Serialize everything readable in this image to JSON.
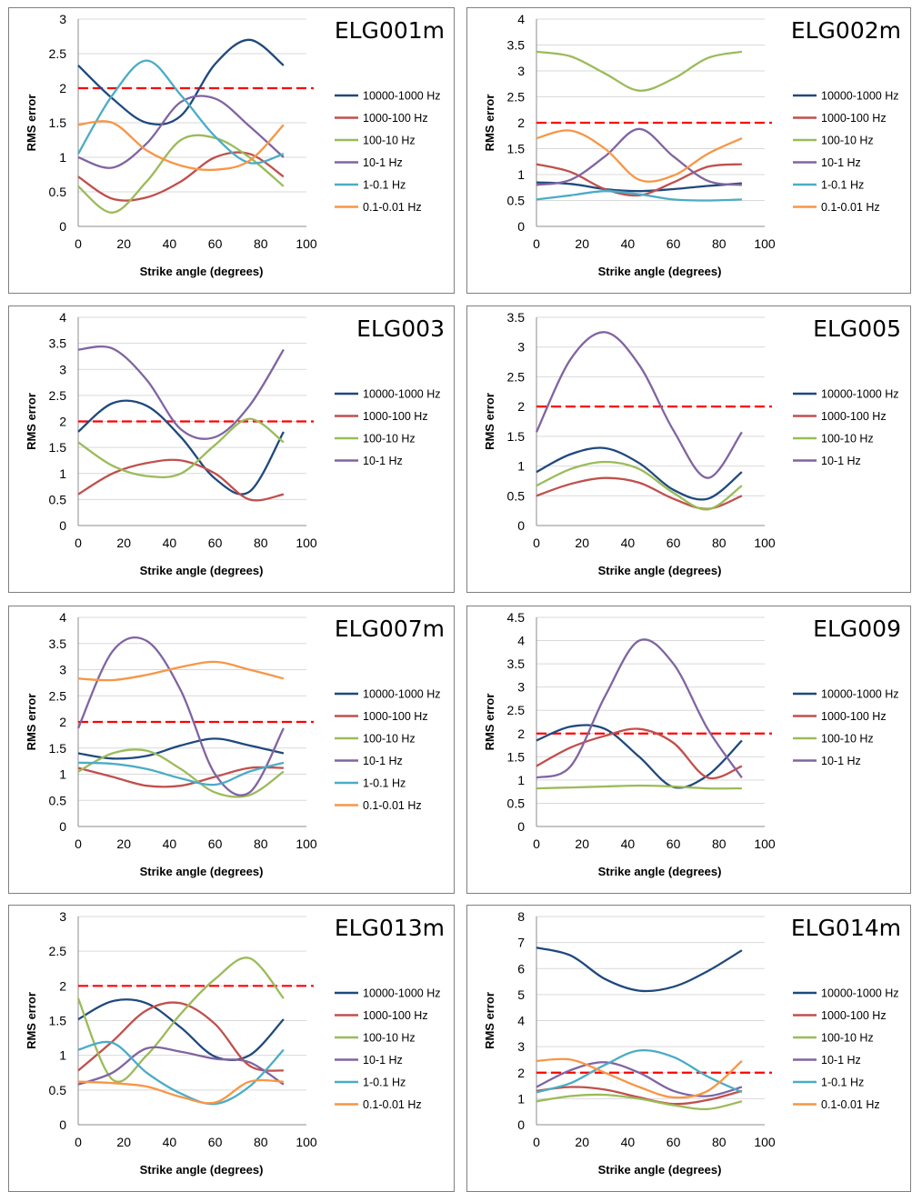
{
  "colors": {
    "10000-1000 Hz": "#1f497d",
    "1000-100 Hz": "#c0504d",
    "100-10 Hz": "#9bbb59",
    "10-1 Hz": "#8064a2",
    "1-0.1 Hz": "#4bacc6",
    "0.1-0.01 Hz": "#f79646",
    "threshold": "#ff0000",
    "grid": "#d9d9d9"
  },
  "chart_data": [
    {
      "type": "line",
      "title": "ELG001m",
      "xlabel": "Strike angle (degrees)",
      "ylabel": "RMS error",
      "xlim": [
        0,
        100
      ],
      "ylim": [
        0,
        3
      ],
      "x_ticks": [
        0,
        20,
        40,
        60,
        80,
        100
      ],
      "y_ticks": [
        "0",
        "0.5",
        "1",
        "1.5",
        "2",
        "2.5",
        "3"
      ],
      "threshold": 2,
      "grid": "horizontal",
      "legend": "right",
      "x": [
        0,
        15,
        30,
        45,
        60,
        75,
        90
      ],
      "series": [
        {
          "name": "10000-1000 Hz",
          "values": [
            2.33,
            1.85,
            1.5,
            1.6,
            2.35,
            2.7,
            2.33
          ]
        },
        {
          "name": "1000-100 Hz",
          "values": [
            0.72,
            0.4,
            0.42,
            0.65,
            1.0,
            1.05,
            0.72
          ]
        },
        {
          "name": "100-10 Hz",
          "values": [
            0.58,
            0.2,
            0.65,
            1.25,
            1.28,
            1.0,
            0.58
          ]
        },
        {
          "name": "10-1 Hz",
          "values": [
            1.0,
            0.85,
            1.2,
            1.8,
            1.85,
            1.45,
            1.0
          ]
        },
        {
          "name": "1-0.1 Hz",
          "values": [
            1.05,
            1.9,
            2.4,
            1.9,
            1.3,
            0.92,
            1.05
          ]
        },
        {
          "name": "0.1-0.01 Hz",
          "values": [
            1.47,
            1.5,
            1.1,
            0.88,
            0.82,
            0.95,
            1.47
          ]
        }
      ]
    },
    {
      "type": "line",
      "title": "ELG002m",
      "xlabel": "Strike angle (degrees)",
      "ylabel": "RMS error",
      "xlim": [
        0,
        100
      ],
      "ylim": [
        0,
        4
      ],
      "x_ticks": [
        0,
        20,
        40,
        60,
        80,
        100
      ],
      "y_ticks": [
        "0",
        "0.5",
        "1",
        "1.5",
        "2",
        "2.5",
        "3",
        "3.5",
        "4"
      ],
      "threshold": 2,
      "grid": "horizontal",
      "legend": "right",
      "x": [
        0,
        15,
        30,
        45,
        60,
        75,
        90
      ],
      "series": [
        {
          "name": "10000-1000 Hz",
          "values": [
            0.85,
            0.82,
            0.72,
            0.68,
            0.72,
            0.78,
            0.83
          ]
        },
        {
          "name": "1000-100 Hz",
          "values": [
            1.2,
            1.05,
            0.72,
            0.6,
            0.85,
            1.15,
            1.2
          ]
        },
        {
          "name": "100-10 Hz",
          "values": [
            3.37,
            3.28,
            2.95,
            2.62,
            2.85,
            3.25,
            3.37
          ]
        },
        {
          "name": "10-1 Hz",
          "values": [
            0.8,
            0.9,
            1.35,
            1.88,
            1.35,
            0.88,
            0.8
          ]
        },
        {
          "name": "1-0.1 Hz",
          "values": [
            0.52,
            0.6,
            0.68,
            0.62,
            0.52,
            0.5,
            0.52
          ]
        },
        {
          "name": "0.1-0.01 Hz",
          "values": [
            1.7,
            1.85,
            1.5,
            0.9,
            0.98,
            1.4,
            1.7
          ]
        }
      ]
    },
    {
      "type": "line",
      "title": "ELG003",
      "xlabel": "Strike angle (degrees)",
      "ylabel": "RMS error",
      "xlim": [
        0,
        100
      ],
      "ylim": [
        0,
        4
      ],
      "x_ticks": [
        0,
        20,
        40,
        60,
        80,
        100
      ],
      "y_ticks": [
        "0",
        "0.5",
        "1",
        "1.5",
        "2",
        "2.5",
        "3",
        "3.5",
        "4"
      ],
      "threshold": 2,
      "grid": "horizontal",
      "legend": "right",
      "x": [
        0,
        15,
        30,
        45,
        60,
        75,
        90
      ],
      "series": [
        {
          "name": "10000-1000 Hz",
          "values": [
            1.8,
            2.35,
            2.3,
            1.7,
            0.9,
            0.65,
            1.8
          ]
        },
        {
          "name": "1000-100 Hz",
          "values": [
            0.6,
            1.0,
            1.2,
            1.25,
            1.0,
            0.5,
            0.6
          ]
        },
        {
          "name": "100-10 Hz",
          "values": [
            1.6,
            1.15,
            0.95,
            1.0,
            1.55,
            2.05,
            1.6
          ]
        },
        {
          "name": "10-1 Hz",
          "values": [
            3.38,
            3.4,
            2.8,
            1.85,
            1.7,
            2.3,
            3.38
          ]
        }
      ]
    },
    {
      "type": "line",
      "title": "ELG005",
      "xlabel": "Strike angle (degrees)",
      "ylabel": "RMS error",
      "xlim": [
        0,
        100
      ],
      "ylim": [
        0,
        3.5
      ],
      "x_ticks": [
        0,
        20,
        40,
        60,
        80,
        100
      ],
      "y_ticks": [
        "0",
        "0.5",
        "1",
        "1.5",
        "2",
        "2.5",
        "3",
        "3.5"
      ],
      "threshold": 2,
      "grid": "horizontal",
      "legend": "right",
      "x": [
        0,
        15,
        30,
        45,
        60,
        75,
        90
      ],
      "series": [
        {
          "name": "10000-1000 Hz",
          "values": [
            0.9,
            1.2,
            1.3,
            1.05,
            0.6,
            0.45,
            0.9
          ]
        },
        {
          "name": "1000-100 Hz",
          "values": [
            0.5,
            0.7,
            0.8,
            0.72,
            0.45,
            0.28,
            0.5
          ]
        },
        {
          "name": "100-10 Hz",
          "values": [
            0.67,
            0.95,
            1.07,
            0.95,
            0.55,
            0.27,
            0.67
          ]
        },
        {
          "name": "10-1 Hz",
          "values": [
            1.57,
            2.8,
            3.25,
            2.7,
            1.6,
            0.8,
            1.57
          ]
        }
      ]
    },
    {
      "type": "line",
      "title": "ELG007m",
      "xlabel": "Strike angle (degrees)",
      "ylabel": "RMS error",
      "xlim": [
        0,
        100
      ],
      "ylim": [
        0,
        4
      ],
      "x_ticks": [
        0,
        20,
        40,
        60,
        80,
        100
      ],
      "y_ticks": [
        "0",
        "0.5",
        "1",
        "1.5",
        "2",
        "2.5",
        "3",
        "3.5",
        "4"
      ],
      "threshold": 2,
      "grid": "horizontal",
      "legend": "right",
      "x": [
        0,
        15,
        30,
        45,
        60,
        75,
        90
      ],
      "series": [
        {
          "name": "10000-1000 Hz",
          "values": [
            1.4,
            1.3,
            1.35,
            1.55,
            1.68,
            1.55,
            1.4
          ]
        },
        {
          "name": "1000-100 Hz",
          "values": [
            1.12,
            0.95,
            0.78,
            0.78,
            0.95,
            1.12,
            1.12
          ]
        },
        {
          "name": "100-10 Hz",
          "values": [
            1.05,
            1.4,
            1.45,
            1.1,
            0.65,
            0.6,
            1.05
          ]
        },
        {
          "name": "10-1 Hz",
          "values": [
            1.88,
            3.35,
            3.55,
            2.6,
            1.0,
            0.65,
            1.88
          ]
        },
        {
          "name": "1-0.1 Hz",
          "values": [
            1.22,
            1.2,
            1.1,
            0.92,
            0.8,
            1.05,
            1.22
          ]
        },
        {
          "name": "0.1-0.01 Hz",
          "values": [
            2.83,
            2.8,
            2.9,
            3.05,
            3.15,
            3.0,
            2.83
          ]
        }
      ]
    },
    {
      "type": "line",
      "title": "ELG009",
      "xlabel": "Strike angle (degrees)",
      "ylabel": "RMS error",
      "xlim": [
        0,
        100
      ],
      "ylim": [
        0,
        4.5
      ],
      "x_ticks": [
        0,
        20,
        40,
        60,
        80,
        100
      ],
      "y_ticks": [
        "0",
        "0.5",
        "1",
        "1.5",
        "2",
        "2.5",
        "3",
        "3.5",
        "4",
        "4.5"
      ],
      "threshold": 2,
      "grid": "horizontal",
      "legend": "right",
      "x": [
        0,
        15,
        30,
        45,
        60,
        75,
        90
      ],
      "series": [
        {
          "name": "10000-1000 Hz",
          "values": [
            1.85,
            2.15,
            2.1,
            1.5,
            0.85,
            1.1,
            1.85
          ]
        },
        {
          "name": "1000-100 Hz",
          "values": [
            1.3,
            1.7,
            1.95,
            2.1,
            1.8,
            1.05,
            1.3
          ]
        },
        {
          "name": "100-10 Hz",
          "values": [
            0.82,
            0.84,
            0.86,
            0.88,
            0.86,
            0.82,
            0.82
          ]
        },
        {
          "name": "10-1 Hz",
          "values": [
            1.05,
            1.3,
            2.8,
            4.0,
            3.5,
            2.1,
            1.05
          ]
        }
      ]
    },
    {
      "type": "line",
      "title": "ELG013m",
      "xlabel": "Strike angle (degrees)",
      "ylabel": "RMS error",
      "xlim": [
        0,
        100
      ],
      "ylim": [
        0,
        3
      ],
      "x_ticks": [
        0,
        20,
        40,
        60,
        80,
        100
      ],
      "y_ticks": [
        "0",
        "0.5",
        "1",
        "1.5",
        "2",
        "2.5",
        "3"
      ],
      "threshold": 2,
      "grid": "horizontal",
      "legend": "right",
      "x": [
        0,
        15,
        30,
        45,
        60,
        75,
        90
      ],
      "series": [
        {
          "name": "10000-1000 Hz",
          "values": [
            1.52,
            1.78,
            1.75,
            1.4,
            0.98,
            1.0,
            1.52
          ]
        },
        {
          "name": "1000-100 Hz",
          "values": [
            0.78,
            1.2,
            1.65,
            1.75,
            1.45,
            0.85,
            0.78
          ]
        },
        {
          "name": "100-10 Hz",
          "values": [
            1.82,
            0.65,
            1.0,
            1.6,
            2.1,
            2.4,
            1.82
          ]
        },
        {
          "name": "10-1 Hz",
          "values": [
            0.58,
            0.75,
            1.1,
            1.05,
            0.95,
            0.9,
            0.58
          ]
        },
        {
          "name": "1-0.1 Hz",
          "values": [
            1.08,
            1.18,
            0.75,
            0.45,
            0.3,
            0.55,
            1.08
          ]
        },
        {
          "name": "0.1-0.01 Hz",
          "values": [
            0.62,
            0.6,
            0.55,
            0.4,
            0.32,
            0.62,
            0.62
          ]
        }
      ]
    },
    {
      "type": "line",
      "title": "ELG014m",
      "xlabel": "Strike angle (degrees)",
      "ylabel": "RMS error",
      "xlim": [
        0,
        100
      ],
      "ylim": [
        0,
        8
      ],
      "x_ticks": [
        0,
        20,
        40,
        60,
        80,
        100
      ],
      "y_ticks": [
        "0",
        "1",
        "2",
        "3",
        "4",
        "5",
        "6",
        "7",
        "8"
      ],
      "threshold": 2,
      "grid": "horizontal",
      "legend": "right",
      "x": [
        0,
        15,
        30,
        45,
        60,
        75,
        90
      ],
      "series": [
        {
          "name": "10000-1000 Hz",
          "values": [
            6.8,
            6.5,
            5.6,
            5.15,
            5.3,
            5.9,
            6.7
          ]
        },
        {
          "name": "1000-100 Hz",
          "values": [
            1.3,
            1.45,
            1.35,
            1.05,
            0.8,
            0.95,
            1.3
          ]
        },
        {
          "name": "100-10 Hz",
          "values": [
            0.9,
            1.1,
            1.15,
            1.0,
            0.75,
            0.6,
            0.9
          ]
        },
        {
          "name": "10-1 Hz",
          "values": [
            1.45,
            2.1,
            2.4,
            2.0,
            1.3,
            1.1,
            1.45
          ]
        },
        {
          "name": "1-0.1 Hz",
          "values": [
            1.25,
            1.6,
            2.3,
            2.85,
            2.6,
            1.85,
            1.25
          ]
        },
        {
          "name": "0.1-0.01 Hz",
          "values": [
            2.45,
            2.5,
            2.0,
            1.45,
            1.05,
            1.3,
            2.45
          ]
        }
      ]
    }
  ]
}
